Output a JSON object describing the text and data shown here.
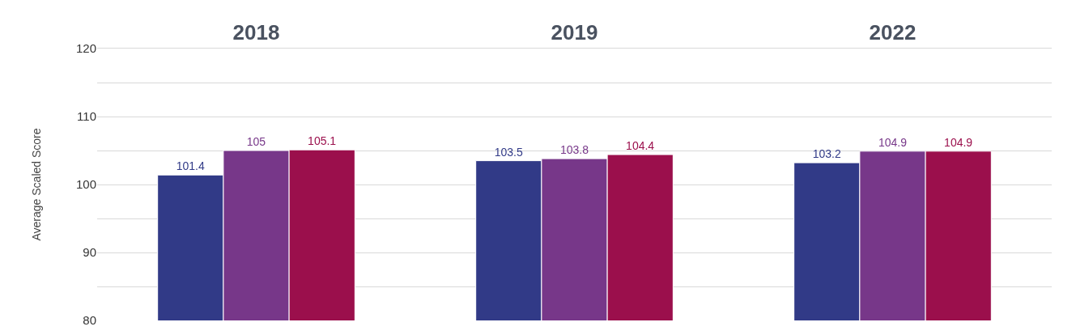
{
  "chart_data": {
    "type": "bar",
    "ylabel": "Average Scaled Score",
    "categories": [
      "2018",
      "2019",
      "2022"
    ],
    "series": [
      {
        "color": "#313a87",
        "values": [
          101.4,
          103.5,
          103.2
        ]
      },
      {
        "color": "#773789",
        "values": [
          105,
          103.8,
          104.9
        ]
      },
      {
        "color": "#9b0f4c",
        "values": [
          105.1,
          104.4,
          104.9
        ]
      }
    ],
    "ylim": [
      80,
      120
    ],
    "yticks": [
      80,
      {
        "value": 85,
        "label": null
      },
      90,
      {
        "value": 95,
        "label": null
      },
      100,
      {
        "value": 105,
        "label": null
      },
      110,
      {
        "value": 115,
        "label": null
      },
      120
    ],
    "grid": "y",
    "data_labels": true
  }
}
